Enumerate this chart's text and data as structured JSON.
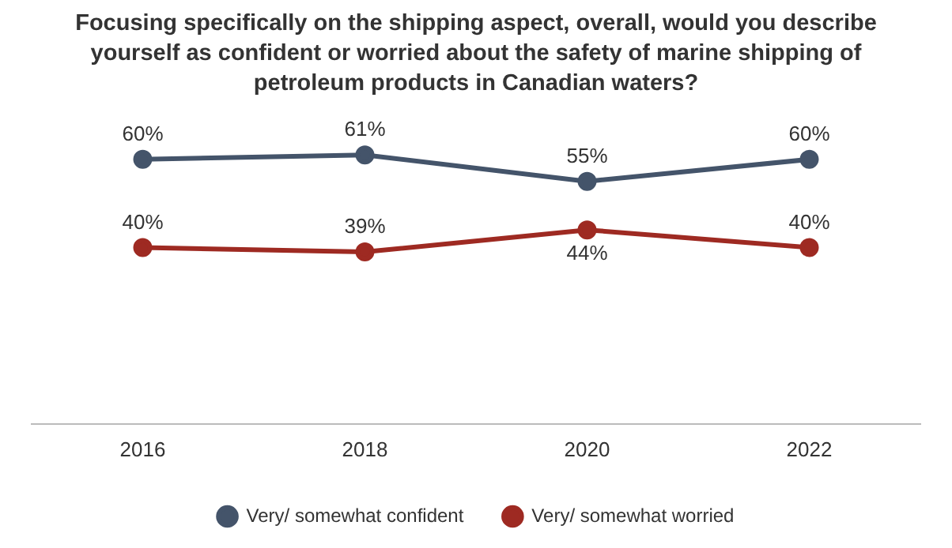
{
  "chart_data": {
    "type": "line",
    "title": "Focusing specifically on the shipping aspect, overall, would you describe yourself as confident or worried about the safety of marine shipping of petroleum products in Canadian waters?",
    "categories": [
      "2016",
      "2018",
      "2020",
      "2022"
    ],
    "series": [
      {
        "name": "Very/ somewhat confident",
        "color": "#44546a",
        "values": [
          60,
          61,
          55,
          60
        ],
        "value_labels": [
          "60%",
          "61%",
          "55%",
          "60%"
        ]
      },
      {
        "name": "Very/ somewhat worried",
        "color": "#9e2a22",
        "values": [
          40,
          39,
          44,
          40
        ],
        "value_labels": [
          "40%",
          "39%",
          "44%",
          "40%"
        ]
      }
    ],
    "marker": "circle",
    "line_style": "solid",
    "grid": false,
    "legend": "bottom",
    "tick_labels": "x"
  }
}
